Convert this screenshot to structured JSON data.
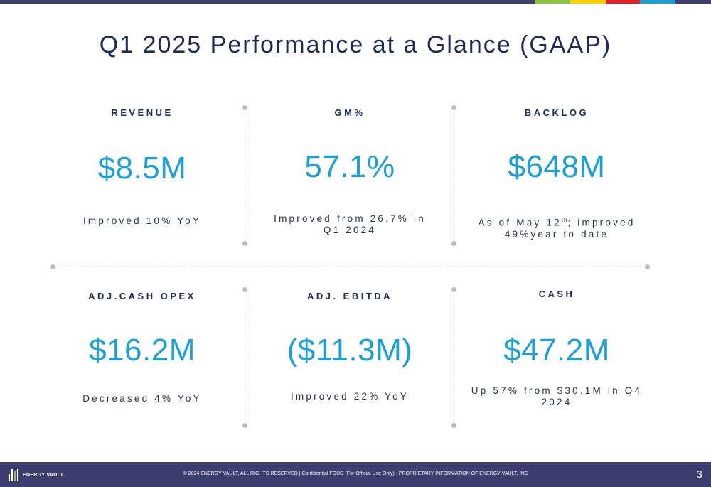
{
  "colors": {
    "navy": "#1f2b57",
    "accent_blue": "#1aa0d8",
    "bar_segments": [
      "#8dc63f",
      "#ffd200",
      "#ed1c24",
      "#1aa0d8"
    ]
  },
  "title": "Q1 2025 Performance at a Glance (GAAP)",
  "metrics": [
    {
      "label": "REVENUE",
      "value": "$8.5M",
      "note": "Improved 10% YoY"
    },
    {
      "label": "GM%",
      "value": "57.1%",
      "note": "Improved from 26.7% in Q1 2024"
    },
    {
      "label": "BACKLOG",
      "value": "$648M",
      "note_pre": "As of May 12",
      "note_sup": "th",
      "note_post": "; improved 49%year to date"
    },
    {
      "label": "ADJ.CASH OPEX",
      "value": "$16.2M",
      "note": "Decreased 4% YoY"
    },
    {
      "label": "ADJ. EBITDA",
      "value": "($11.3M)",
      "note": "Improved 22% YoY"
    },
    {
      "label": "CASH",
      "value": "$47.2M",
      "note": "Up 57% from $30.1M in Q4 2024"
    }
  ],
  "footer": {
    "logo_text": "ENERGY VAULT",
    "text": "© 2024 ENERGY VAULT, ALL RIGHTS RESERVED  |  Confidential FOUO (For Official Use Only) - PROPRIETARY INFORMATION OF ENERGY VAULT, INC",
    "page_number": "3"
  }
}
